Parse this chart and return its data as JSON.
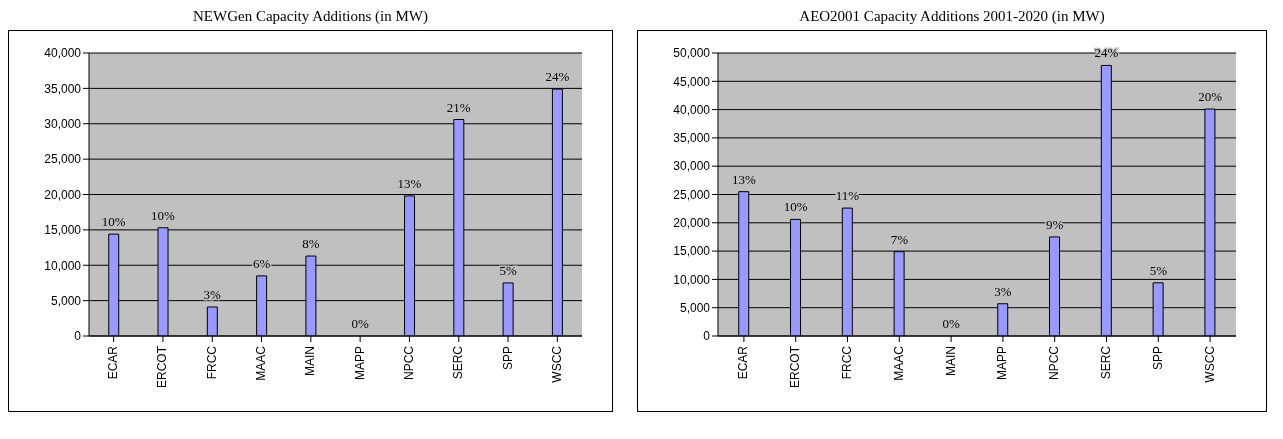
{
  "chart_data": [
    {
      "type": "bar",
      "title": "NEWGen Capacity Additions (in MW)",
      "categories": [
        "ECAR",
        "ERCOT",
        "FRCC",
        "MAAC",
        "MAIN",
        "MAPP",
        "NPCC",
        "SERC",
        "SPP",
        "WSCC"
      ],
      "values": [
        14400,
        15300,
        4100,
        8500,
        11300,
        0,
        19800,
        30600,
        7500,
        34900
      ],
      "color": "#9999ff",
      "ylim": [
        0,
        40000
      ],
      "yticks": [
        {
          "value": 0,
          "label": "0"
        },
        {
          "value": 5000,
          "label": "5,000"
        },
        {
          "value": 10000,
          "label": "10,000"
        },
        {
          "value": 15000,
          "label": "15,000"
        },
        {
          "value": 20000,
          "label": "20,000"
        },
        {
          "value": 25000,
          "label": "25,000"
        },
        {
          "value": 30000,
          "label": "30,000"
        },
        {
          "value": 35000,
          "label": "35,000"
        },
        {
          "value": 40000,
          "label": "40,000"
        }
      ],
      "grid": "y",
      "annotations": [
        {
          "text": "10%",
          "x": "ECAR",
          "y": 14400
        },
        {
          "text": "10%",
          "x": "ERCOT",
          "y": 15300
        },
        {
          "text": "3%",
          "x": "FRCC",
          "y": 4100
        },
        {
          "text": "6%",
          "x": "MAAC",
          "y": 8500
        },
        {
          "text": "8%",
          "x": "MAIN",
          "y": 11300
        },
        {
          "text": "0%",
          "x": "MAPP",
          "y": 0
        },
        {
          "text": "13%",
          "x": "NPCC",
          "y": 19800
        },
        {
          "text": "21%",
          "x": "SERC",
          "y": 30600
        },
        {
          "text": "5%",
          "x": "SPP",
          "y": 7500
        },
        {
          "text": "24%",
          "x": "WSCC",
          "y": 34900
        }
      ]
    },
    {
      "type": "bar",
      "title": "AEO2001 Capacity Additions 2001-2020 (in MW)",
      "categories": [
        "ECAR",
        "ERCOT",
        "FRCC",
        "MAAC",
        "MAIN",
        "MAPP",
        "NPCC",
        "SERC",
        "SPP",
        "WSCC"
      ],
      "values": [
        25500,
        20600,
        22600,
        14900,
        0,
        5700,
        17500,
        47800,
        9400,
        40100
      ],
      "color": "#9999ff",
      "ylim": [
        0,
        50000
      ],
      "yticks": [
        {
          "value": 0,
          "label": "0"
        },
        {
          "value": 5000,
          "label": "5,000"
        },
        {
          "value": 10000,
          "label": "10,000"
        },
        {
          "value": 15000,
          "label": "15,000"
        },
        {
          "value": 20000,
          "label": "20,000"
        },
        {
          "value": 25000,
          "label": "25,000"
        },
        {
          "value": 30000,
          "label": "30,000"
        },
        {
          "value": 35000,
          "label": "35,000"
        },
        {
          "value": 40000,
          "label": "40,000"
        },
        {
          "value": 45000,
          "label": "45,000"
        },
        {
          "value": 50000,
          "label": "50,000"
        }
      ],
      "grid": "y",
      "annotations": [
        {
          "text": "13%",
          "x": "ECAR",
          "y": 25500
        },
        {
          "text": "10%",
          "x": "ERCOT",
          "y": 20600
        },
        {
          "text": "11%",
          "x": "FRCC",
          "y": 22600
        },
        {
          "text": "7%",
          "x": "MAAC",
          "y": 14900
        },
        {
          "text": "0%",
          "x": "MAIN",
          "y": 0
        },
        {
          "text": "3%",
          "x": "MAPP",
          "y": 5700
        },
        {
          "text": "9%",
          "x": "NPCC",
          "y": 17500
        },
        {
          "text": "24%",
          "x": "SERC",
          "y": 47800
        },
        {
          "text": "5%",
          "x": "SPP",
          "y": 9400
        },
        {
          "text": "20%",
          "x": "WSCC",
          "y": 40100
        }
      ]
    }
  ]
}
